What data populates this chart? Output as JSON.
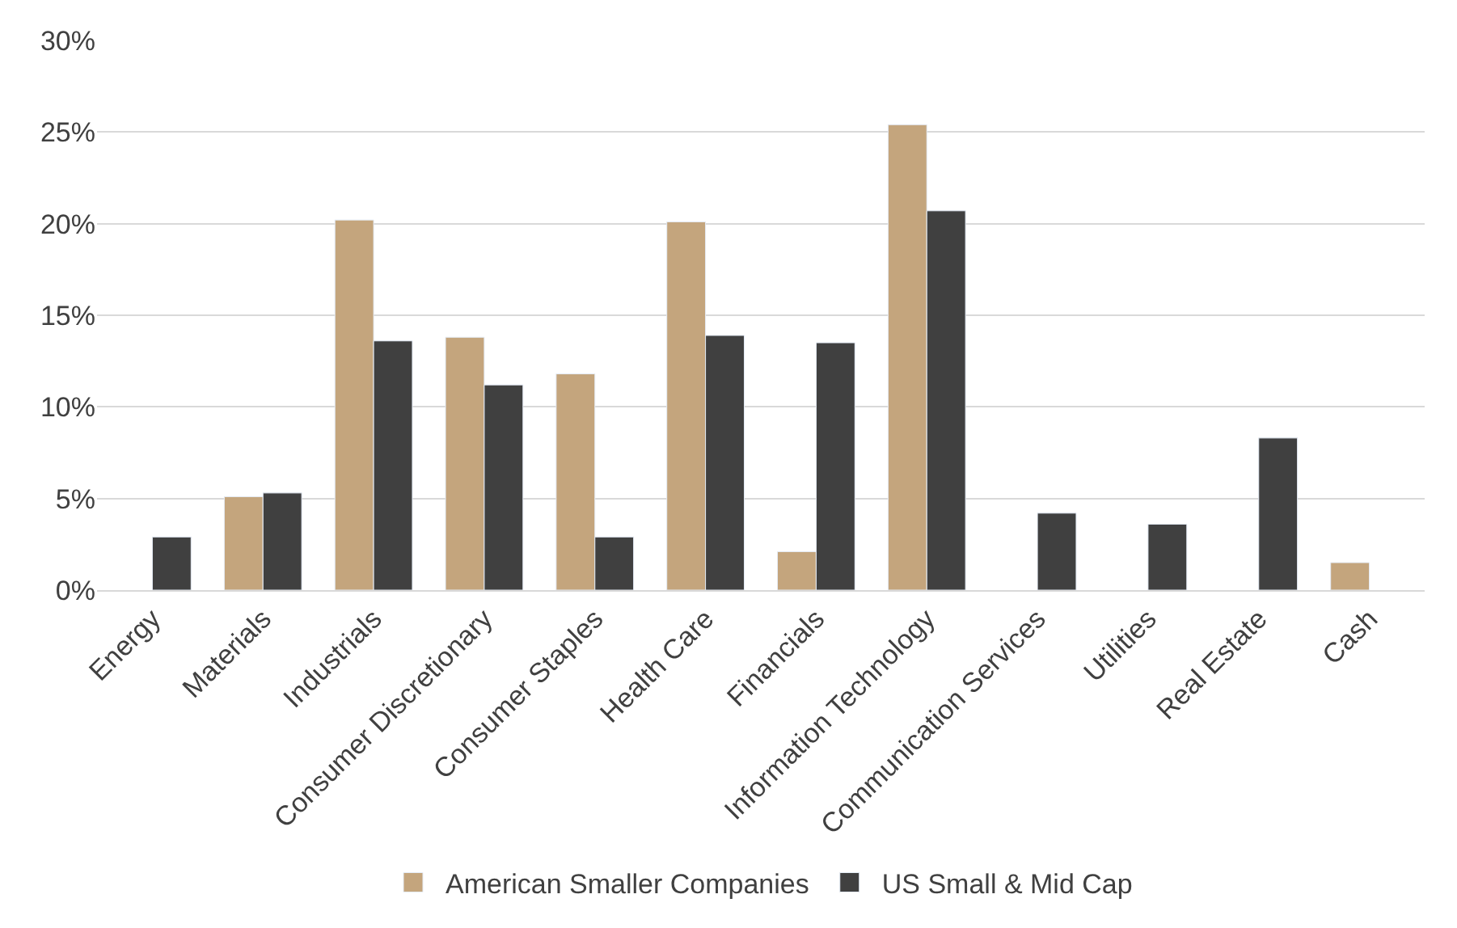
{
  "chart_data": {
    "type": "bar",
    "categories": [
      "Energy",
      "Materials",
      "Industrials",
      "Consumer Discretionary",
      "Consumer Staples",
      "Health Care",
      "Financials",
      "Information Technology",
      "Communication Services",
      "Utilities",
      "Real Estate",
      "Cash"
    ],
    "series": [
      {
        "name": "American Smaller Companies",
        "color": "#c4a57d",
        "values": [
          null,
          5.1,
          20.2,
          13.8,
          11.8,
          20.1,
          2.1,
          25.4,
          null,
          null,
          null,
          1.5
        ]
      },
      {
        "name": "US Small & Mid Cap",
        "color": "#404040",
        "values": [
          2.9,
          5.3,
          13.6,
          11.2,
          2.9,
          13.9,
          13.5,
          20.7,
          4.2,
          3.6,
          8.3,
          null
        ]
      }
    ],
    "ylim": [
      0,
      30
    ],
    "yticks": [
      {
        "value": 0,
        "label": "0%"
      },
      {
        "value": 5,
        "label": "5%"
      },
      {
        "value": 10,
        "label": "10%"
      },
      {
        "value": 15,
        "label": "15%"
      },
      {
        "value": 20,
        "label": "20%"
      },
      {
        "value": 25,
        "label": "25%"
      },
      {
        "value": 30,
        "label": "30%"
      }
    ],
    "grid": "y",
    "legend": "bottom"
  }
}
